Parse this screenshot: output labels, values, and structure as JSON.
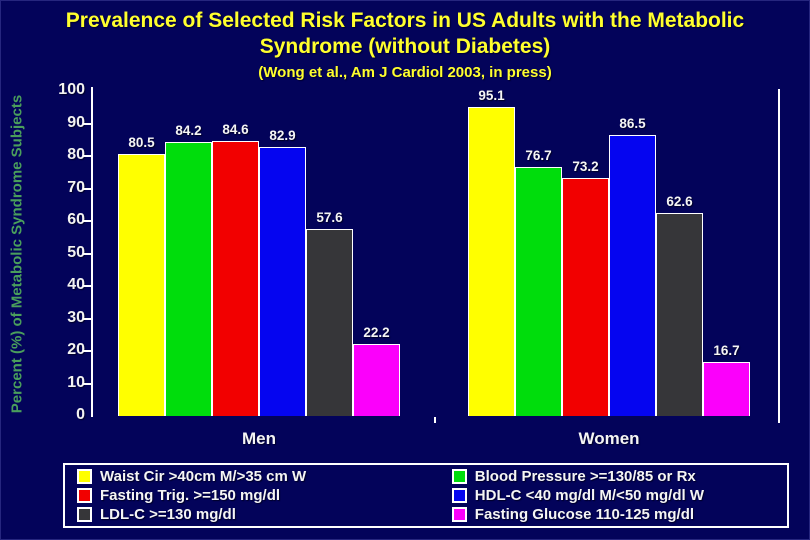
{
  "slide": {
    "title": "Prevalence of Selected Risk Factors in US Adults with the Metabolic Syndrome (without Diabetes)",
    "subtitle": "(Wong et al., Am J Cardiol 2003, in press)"
  },
  "colors": {
    "background": "#03035a",
    "title_text": "#ffff2e",
    "axis_text": "#f2f2f2",
    "ylabel_text": "#4a9e5c"
  },
  "chart_data": {
    "type": "bar",
    "title": "Prevalence of Selected Risk Factors in US Adults with the Metabolic Syndrome (without Diabetes)",
    "subtitle": "(Wong et al., Am J Cardiol 2003, in press)",
    "categories": [
      "Men",
      "Women"
    ],
    "series": [
      {
        "name": "Waist Cir >40cm M/>35 cm W",
        "color": "#ffff00",
        "values": [
          80.5,
          95.1
        ]
      },
      {
        "name": "Blood Pressure >=130/85 or Rx",
        "color": "#00dd0c",
        "values": [
          84.2,
          76.7
        ]
      },
      {
        "name": "Fasting Trig. >=150 mg/dl",
        "color": "#f20000",
        "values": [
          84.6,
          73.2
        ]
      },
      {
        "name": "HDL-C <40 mg/dl M/<50 mg/dl W",
        "color": "#0505f0",
        "values": [
          82.9,
          86.5
        ]
      },
      {
        "name": "LDL-C >=130 mg/dl",
        "color": "#363639",
        "values": [
          57.6,
          62.6
        ]
      },
      {
        "name": "Fasting Glucose 110-125 mg/dl",
        "color": "#fb00fb",
        "values": [
          22.2,
          16.7
        ]
      }
    ],
    "ylabel": "Percent (%) of Metabolic Syndrome Subjects",
    "xlabel": "",
    "ylim": [
      0,
      100
    ],
    "ytick_labels": [
      "100",
      "90",
      "80",
      "70",
      "60",
      "50",
      "40",
      "30",
      "20",
      "10",
      "0"
    ],
    "grid": false,
    "data_labels": true,
    "legend_position": "bottom"
  },
  "legend": {
    "columns": [
      [
        {
          "label": "Waist Cir >40cm M/>35 cm W",
          "color": "#ffff00"
        },
        {
          "label": "Fasting Trig. >=150 mg/dl",
          "color": "#f20000"
        },
        {
          "label": "LDL-C >=130 mg/dl",
          "color": "#363639"
        }
      ],
      [
        {
          "label": "Blood Pressure >=130/85 or Rx",
          "color": "#00dd0c"
        },
        {
          "label": "HDL-C <40 mg/dl M/<50 mg/dl W",
          "color": "#0505f0"
        },
        {
          "label": "Fasting Glucose 110-125 mg/dl",
          "color": "#fb00fb"
        }
      ]
    ]
  }
}
